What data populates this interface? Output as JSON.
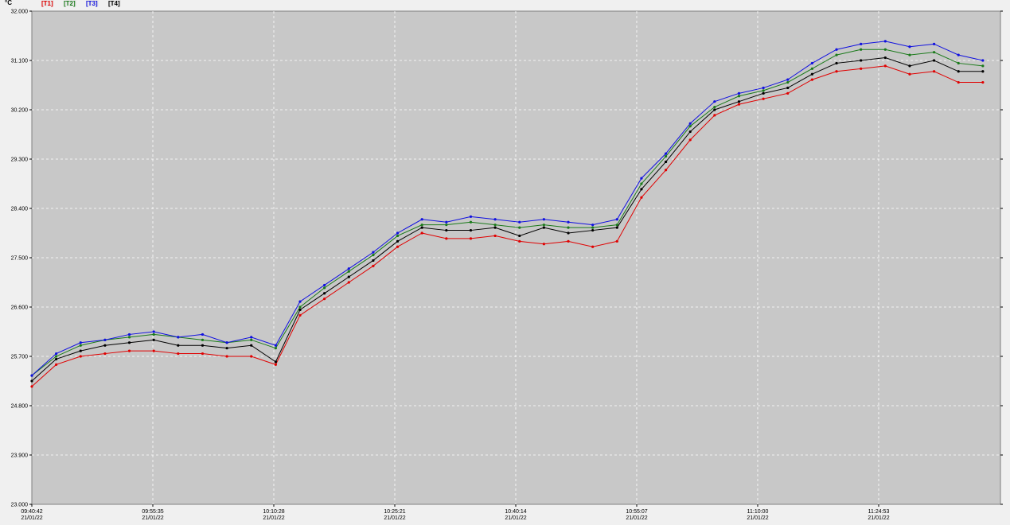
{
  "chart_data": {
    "type": "line",
    "y_unit": "°C",
    "x_tick_date": "21/01/22",
    "xlim": [
      "09:40:42",
      "11:39:52"
    ],
    "xticks": [
      "09:40:42",
      "09:55:35",
      "10:10:28",
      "10:25:21",
      "10:40:14",
      "10:55:07",
      "11:10:00",
      "11:24:53"
    ],
    "ylim": [
      23,
      32
    ],
    "yticks": [
      {
        "value": 23,
        "label": "23.000"
      },
      {
        "value": 23.9,
        "label": "23.900"
      },
      {
        "value": 24.8,
        "label": "24.800"
      },
      {
        "value": 25.7,
        "label": "25.700"
      },
      {
        "value": 26.6,
        "label": "26.600"
      },
      {
        "value": 27.5,
        "label": "27.500"
      },
      {
        "value": 28.4,
        "label": "28.400"
      },
      {
        "value": 29.3,
        "label": "29.300"
      },
      {
        "value": 30.2,
        "label": "30.200"
      },
      {
        "value": 31.1,
        "label": "31.100"
      },
      {
        "value": 32,
        "label": "32.000"
      }
    ],
    "grid": true,
    "x": [
      "09:40:42",
      "09:43:42",
      "09:46:42",
      "09:49:42",
      "09:52:42",
      "09:55:42",
      "09:58:42",
      "10:01:42",
      "10:04:42",
      "10:07:42",
      "10:10:42",
      "10:13:42",
      "10:16:42",
      "10:19:42",
      "10:22:42",
      "10:25:42",
      "10:28:42",
      "10:31:42",
      "10:34:42",
      "10:37:42",
      "10:40:42",
      "10:43:42",
      "10:46:42",
      "10:49:42",
      "10:52:42",
      "10:55:42",
      "10:58:42",
      "11:01:42",
      "11:04:42",
      "11:07:42",
      "11:10:42",
      "11:13:42",
      "11:16:42",
      "11:19:42",
      "11:22:42",
      "11:25:42",
      "11:28:42",
      "11:31:42",
      "11:34:42",
      "11:37:42"
    ],
    "series": [
      {
        "name": "[T1]",
        "color": "#e00000",
        "values": [
          25.15,
          25.55,
          25.7,
          25.75,
          25.8,
          25.8,
          25.75,
          25.75,
          25.7,
          25.7,
          25.55,
          26.45,
          26.75,
          27.05,
          27.35,
          27.7,
          27.95,
          27.85,
          27.85,
          27.9,
          27.8,
          27.75,
          27.8,
          27.7,
          27.8,
          28.6,
          29.1,
          29.65,
          30.1,
          30.3,
          30.4,
          30.5,
          30.75,
          30.9,
          30.95,
          31.0,
          30.85,
          30.9,
          30.7,
          30.7
        ]
      },
      {
        "name": "[T2]",
        "color": "#1a7a1a",
        "values": [
          25.35,
          25.7,
          25.9,
          26.0,
          26.05,
          26.1,
          26.05,
          26.0,
          25.95,
          26.0,
          25.85,
          26.6,
          26.95,
          27.25,
          27.55,
          27.9,
          28.1,
          28.1,
          28.15,
          28.1,
          28.05,
          28.1,
          28.05,
          28.05,
          28.1,
          28.85,
          29.35,
          29.9,
          30.25,
          30.45,
          30.55,
          30.7,
          30.95,
          31.2,
          31.3,
          31.3,
          31.2,
          31.25,
          31.05,
          31.0
        ]
      },
      {
        "name": "[T3]",
        "color": "#1010e0",
        "values": [
          25.35,
          25.75,
          25.95,
          26.0,
          26.1,
          26.15,
          26.05,
          26.1,
          25.95,
          26.05,
          25.9,
          26.7,
          27.0,
          27.3,
          27.6,
          27.95,
          28.2,
          28.15,
          28.25,
          28.2,
          28.15,
          28.2,
          28.15,
          28.1,
          28.2,
          28.95,
          29.4,
          29.95,
          30.35,
          30.5,
          30.6,
          30.75,
          31.05,
          31.3,
          31.4,
          31.45,
          31.35,
          31.4,
          31.2,
          31.1
        ]
      },
      {
        "name": "[T4]",
        "color": "#000000",
        "values": [
          25.25,
          25.65,
          25.8,
          25.9,
          25.95,
          26.0,
          25.9,
          25.9,
          25.85,
          25.9,
          25.6,
          26.55,
          26.85,
          27.15,
          27.45,
          27.8,
          28.05,
          28.0,
          28.0,
          28.05,
          27.9,
          28.05,
          27.95,
          28.0,
          28.05,
          28.75,
          29.25,
          29.8,
          30.2,
          30.35,
          30.5,
          30.6,
          30.85,
          31.05,
          31.1,
          31.15,
          31.0,
          31.1,
          30.9,
          30.9
        ]
      }
    ]
  }
}
